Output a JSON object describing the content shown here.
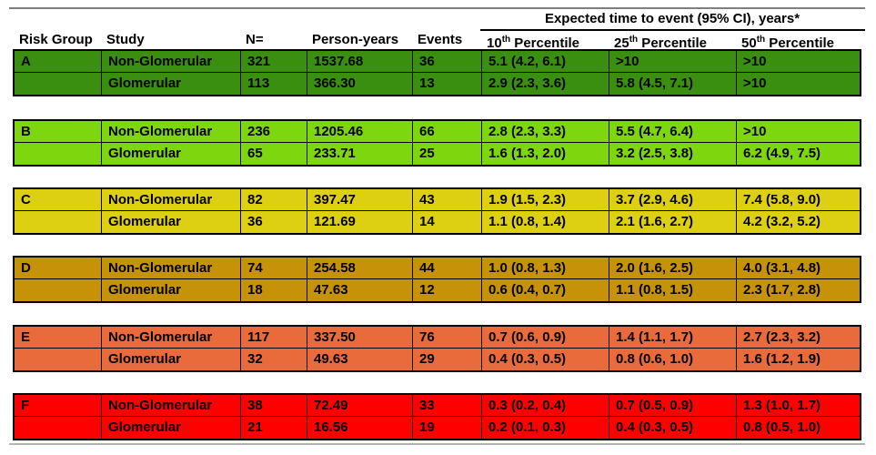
{
  "header": {
    "span_title": "Expected time to event (95% CI), years*",
    "risk_group": "Risk Group",
    "study": "Study",
    "n": "N=",
    "person_years": "Person-years",
    "events": "Events",
    "p10": {
      "num": "10",
      "sup": "th",
      "rest": " Percentile"
    },
    "p25": {
      "num": "25",
      "sup": "th",
      "rest": " Percentile"
    },
    "p50": {
      "num": "50",
      "sup": "th",
      "rest": " Percentile"
    }
  },
  "chart_data": {
    "type": "table",
    "title": "Expected time to event (95% CI), years*",
    "columns": [
      "Risk Group",
      "Study",
      "N=",
      "Person-years",
      "Events",
      "10th Percentile",
      "25th Percentile",
      "50th Percentile"
    ],
    "groups": [
      {
        "label": "A",
        "color": "#3a8e10",
        "rows": [
          {
            "study": "Non-Glomerular",
            "n": "321",
            "person_years": "1537.68",
            "events": "36",
            "p10": "5.1 (4.2, 6.1)",
            "p25": ">10",
            "p50": ">10"
          },
          {
            "study": "Glomerular",
            "n": "113",
            "person_years": "366.30",
            "events": "13",
            "p10": "2.9 (2.3, 3.6)",
            "p25": "5.8 (4.5, 7.1)",
            "p50": ">10"
          }
        ]
      },
      {
        "label": "B",
        "color": "#7ed60f",
        "rows": [
          {
            "study": "Non-Glomerular",
            "n": "236",
            "person_years": "1205.46",
            "events": "66",
            "p10": "2.8 (2.3, 3.3)",
            "p25": "5.5 (4.7, 6.4)",
            "p50": ">10"
          },
          {
            "study": "Glomerular",
            "n": "65",
            "person_years": "233.71",
            "events": "25",
            "p10": "1.6 (1.3, 2.0)",
            "p25": "3.2 (2.5, 3.8)",
            "p50": "6.2 (4.9, 7.5)"
          }
        ]
      },
      {
        "label": "C",
        "color": "#ddd013",
        "rows": [
          {
            "study": "Non-Glomerular",
            "n": "82",
            "person_years": "397.47",
            "events": "43",
            "p10": "1.9 (1.5, 2.3)",
            "p25": "3.7 (2.9, 4.6)",
            "p50": "7.4 (5.8, 9.0)"
          },
          {
            "study": "Glomerular",
            "n": "36",
            "person_years": "121.69",
            "events": "14",
            "p10": "1.1 (0.8, 1.4)",
            "p25": "2.1 (1.6, 2.7)",
            "p50": "4.2 (3.2, 5.2)"
          }
        ]
      },
      {
        "label": "D",
        "color": "#c69207",
        "rows": [
          {
            "study": "Non-Glomerular",
            "n": "74",
            "person_years": "254.58",
            "events": "44",
            "p10": "1.0 (0.8, 1.3)",
            "p25": "2.0 (1.6, 2.5)",
            "p50": "4.0 (3.1, 4.8)"
          },
          {
            "study": "Glomerular",
            "n": "18",
            "person_years": "47.63",
            "events": "12",
            "p10": "0.6 (0.4, 0.7)",
            "p25": "1.1 (0.8, 1.5)",
            "p50": "2.3 (1.7, 2.8)"
          }
        ]
      },
      {
        "label": "E",
        "color": "#e96a3b",
        "rows": [
          {
            "study": "Non-Glomerular",
            "n": "117",
            "person_years": "337.50",
            "events": "76",
            "p10": "0.7 (0.6, 0.9)",
            "p25": "1.4 (1.1, 1.7)",
            "p50": "2.7 (2.3, 3.2)"
          },
          {
            "study": "Glomerular",
            "n": "32",
            "person_years": "49.63",
            "events": "29",
            "p10": "0.4 (0.3, 0.5)",
            "p25": "0.8 (0.6, 1.0)",
            "p50": "1.6 (1.2, 1.9)"
          }
        ]
      },
      {
        "label": "F",
        "color": "#fe0000",
        "rows": [
          {
            "study": "Non-Glomerular",
            "n": "38",
            "person_years": "72.49",
            "events": "33",
            "p10": "0.3 (0.2, 0.4)",
            "p25": "0.7 (0.5, 0.9)",
            "p50": "1.3 (1.0, 1.7)"
          },
          {
            "study": "Glomerular",
            "n": "21",
            "person_years": "16.56",
            "events": "19",
            "p10": "0.2 (0.1, 0.3)",
            "p25": "0.4 (0.3, 0.5)",
            "p50": "0.8 (0.5, 1.0)"
          }
        ]
      }
    ]
  }
}
